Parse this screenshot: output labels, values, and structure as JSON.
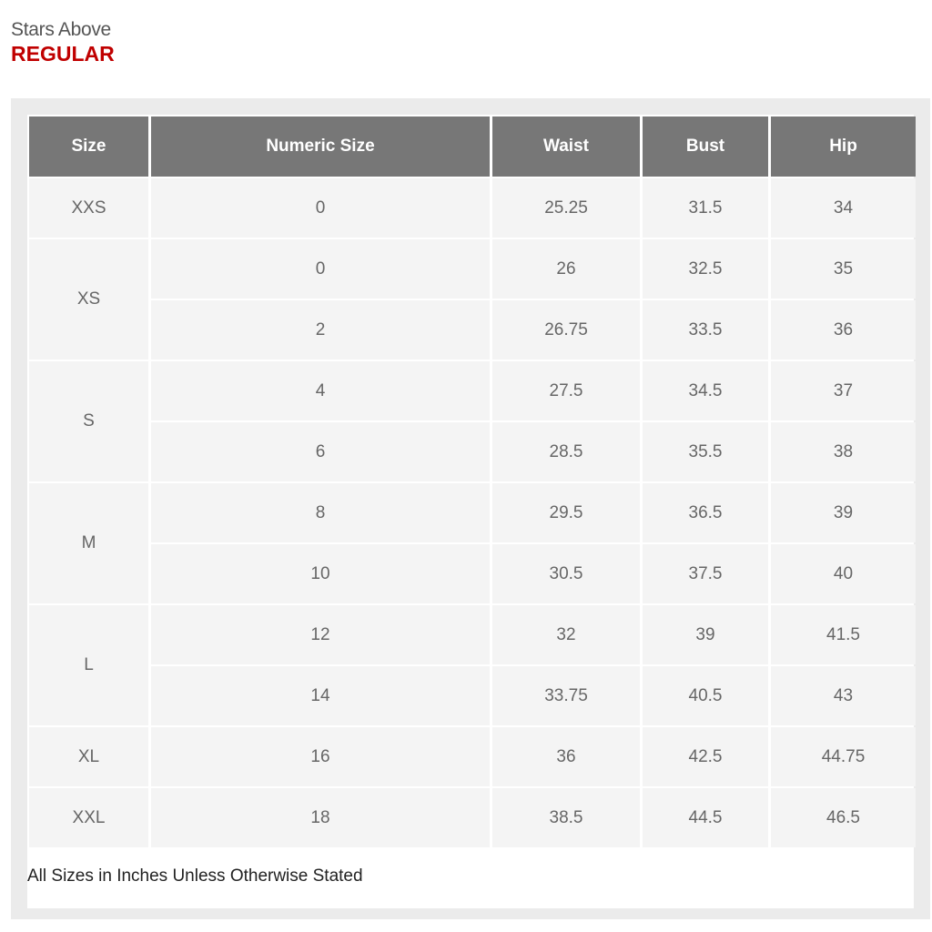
{
  "brand": "Stars Above",
  "fit": "REGULAR",
  "table": {
    "headers": [
      "Size",
      "Numeric Size",
      "Waist",
      "Bust",
      "Hip"
    ],
    "groups": [
      {
        "size": "XXS",
        "rows": [
          [
            "0",
            "25.25",
            "31.5",
            "34"
          ]
        ]
      },
      {
        "size": "XS",
        "rows": [
          [
            "0",
            "26",
            "32.5",
            "35"
          ],
          [
            "2",
            "26.75",
            "33.5",
            "36"
          ]
        ]
      },
      {
        "size": "S",
        "rows": [
          [
            "4",
            "27.5",
            "34.5",
            "37"
          ],
          [
            "6",
            "28.5",
            "35.5",
            "38"
          ]
        ]
      },
      {
        "size": "M",
        "rows": [
          [
            "8",
            "29.5",
            "36.5",
            "39"
          ],
          [
            "10",
            "30.5",
            "37.5",
            "40"
          ]
        ]
      },
      {
        "size": "L",
        "rows": [
          [
            "12",
            "32",
            "39",
            "41.5"
          ],
          [
            "14",
            "33.75",
            "40.5",
            "43"
          ]
        ]
      },
      {
        "size": "XL",
        "rows": [
          [
            "16",
            "36",
            "42.5",
            "44.75"
          ]
        ]
      },
      {
        "size": "XXL",
        "rows": [
          [
            "18",
            "38.5",
            "44.5",
            "46.5"
          ]
        ]
      }
    ]
  },
  "note": "All Sizes in Inches Unless Otherwise Stated",
  "colors": {
    "header_bg": "#777777",
    "fit_red": "#c00000",
    "cell_bg": "#f4f4f4"
  }
}
